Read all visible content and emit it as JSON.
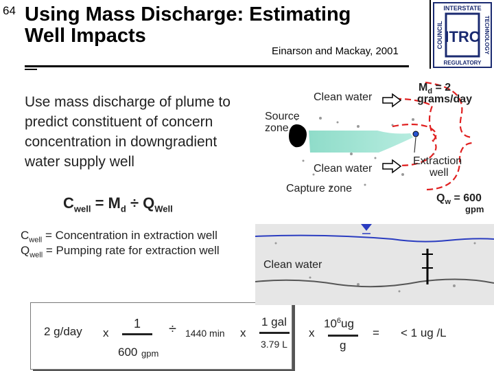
{
  "slide_number": "64",
  "title_line1": "Using Mass Discharge: Estimating",
  "title_line2": "Well Impacts",
  "citation": "Einarson and Mackay, 2001",
  "logo": {
    "main": "ITRC",
    "top": "INTERSTATE",
    "right": "TECHNOLOGY",
    "bottom": "REGULATORY",
    "left": "COUNCIL"
  },
  "body_text": "Use mass discharge of plume to predict constituent of concern concentration in downgradient water supply well",
  "formula": {
    "c": "C",
    "c_sub": "well",
    "eq": " = M",
    "m_sub": "d",
    "div": " ÷ Q",
    "q_sub": "Well"
  },
  "definitions": [
    {
      "sym": "C",
      "sub": "well",
      "text": " = Concentration in extraction well"
    },
    {
      "sym": "Q",
      "sub": "well",
      "text": " = Pumping rate for extraction well"
    }
  ],
  "diagram": {
    "clean_water_top": "Clean water",
    "clean_water_mid": "Clean water",
    "clean_water_bottom": "Clean water",
    "source_zone_1": "Source",
    "source_zone_2": "zone",
    "capture_zone": "Capture zone",
    "md_1": "M",
    "md_sub": "d",
    "md_2": " = 2",
    "md_3": "grams/day",
    "extraction_1": "Extraction",
    "extraction_2": "well",
    "qw_1": "Q",
    "qw_sub": "w",
    "qw_2": " = 600",
    "qw_3": "gpm"
  },
  "calculation": {
    "term1": "2 g/day",
    "x1": "x",
    "one": "1",
    "six_hundred": "600",
    "gpm": "gpm",
    "div": "÷",
    "minutes": "1440 min",
    "x2": "x",
    "gal": "1 gal",
    "liters": "3.79 L",
    "x3": "x",
    "ten": "10",
    "exp": "6",
    "ug": "ug",
    "g": "g",
    "eq": "=",
    "result": "< 1 ug /L"
  },
  "colors": {
    "plume": "#9fe0d2",
    "flow_lines": "#e02020",
    "water_table": "#2a3cc0",
    "source": "#000000"
  }
}
